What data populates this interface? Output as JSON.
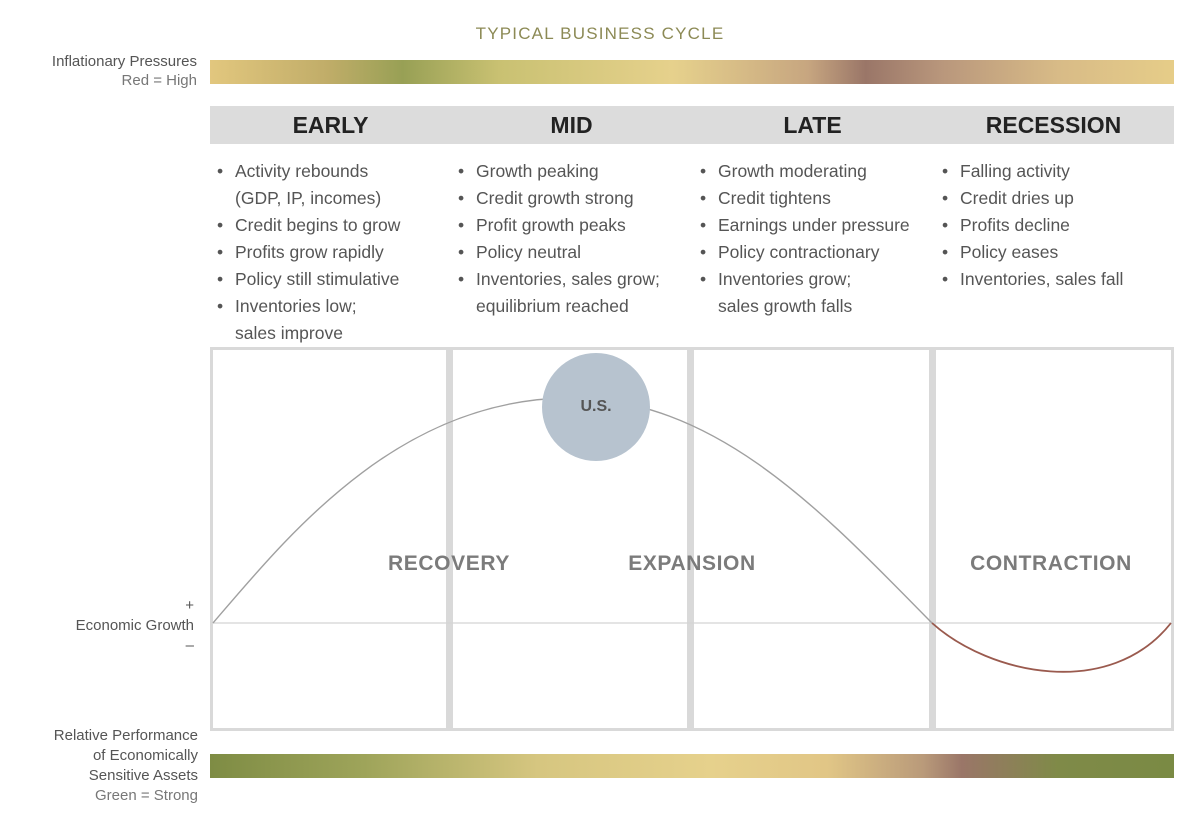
{
  "title": "TYPICAL BUSINESS CYCLE",
  "inflation_label": {
    "line1": "Inflationary Pressures",
    "line2": "Red = High"
  },
  "phases": [
    {
      "name": "EARLY",
      "bullets": [
        [
          "Activity rebounds",
          "(GDP, IP, incomes)"
        ],
        [
          "Credit begins to grow"
        ],
        [
          "Profits grow rapidly"
        ],
        [
          "Policy still stimulative"
        ],
        [
          "Inventories low;",
          "sales improve"
        ]
      ]
    },
    {
      "name": "MID",
      "bullets": [
        [
          "Growth peaking"
        ],
        [
          "Credit growth strong"
        ],
        [
          "Profit growth peaks"
        ],
        [
          "Policy neutral"
        ],
        [
          "Inventories, sales grow;",
          "equilibrium reached"
        ]
      ]
    },
    {
      "name": "LATE",
      "bullets": [
        [
          "Growth moderating"
        ],
        [
          "Credit tightens"
        ],
        [
          "Earnings under pressure"
        ],
        [
          "Policy contractionary"
        ],
        [
          "Inventories grow;",
          "sales growth falls"
        ]
      ]
    },
    {
      "name": "RECESSION",
      "bullets": [
        [
          "Falling activity"
        ],
        [
          "Credit dries up"
        ],
        [
          "Profits decline"
        ],
        [
          "Policy eases"
        ],
        [
          "Inventories, sales fall"
        ]
      ]
    }
  ],
  "cycle_labels": {
    "recovery": "RECOVERY",
    "expansion": "EXPANSION",
    "contraction": "CONTRACTION"
  },
  "marker": {
    "label": "U.S.",
    "color": "#b7c3cf"
  },
  "growth_axis": {
    "plus": "+",
    "label": "Economic Growth",
    "minus": "–"
  },
  "performance_label": {
    "line1": "Relative Performance",
    "line2": "of Economically",
    "line3": "Sensitive Assets",
    "line4": "Green = Strong"
  },
  "colors": {
    "positive_curve": "#a0a0a0",
    "negative_curve": "#9a5a4e",
    "inflation_high": "#9a7668",
    "performance_strong": "#7e8c44"
  }
}
